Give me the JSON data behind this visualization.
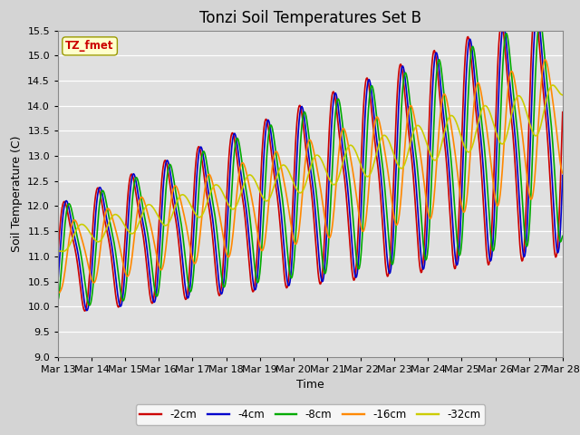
{
  "title": "Tonzi Soil Temperatures Set B",
  "xlabel": "Time",
  "ylabel": "Soil Temperature (C)",
  "ylim": [
    9.0,
    15.5
  ],
  "yticks": [
    9.0,
    9.5,
    10.0,
    10.5,
    11.0,
    11.5,
    12.0,
    12.5,
    13.0,
    13.5,
    14.0,
    14.5,
    15.0,
    15.5
  ],
  "xtick_labels": [
    "Mar 13",
    "Mar 14",
    "Mar 15",
    "Mar 16",
    "Mar 17",
    "Mar 18",
    "Mar 19",
    "Mar 20",
    "Mar 21",
    "Mar 22",
    "Mar 23",
    "Mar 24",
    "Mar 25",
    "Mar 26",
    "Mar 27",
    "Mar 28"
  ],
  "series_colors": [
    "#cc0000",
    "#0000cc",
    "#00aa00",
    "#ff8800",
    "#cccc00"
  ],
  "series_labels": [
    "-2cm",
    "-4cm",
    "-8cm",
    "-16cm",
    "-32cm"
  ],
  "annotation_text": "TZ_fmet",
  "annotation_color": "#cc0000",
  "annotation_bg": "#ffffcc",
  "annotation_edge": "#999900",
  "fig_facecolor": "#d4d4d4",
  "plot_facecolor": "#e0e0e0",
  "grid_color": "#ffffff",
  "title_fontsize": 12,
  "label_fontsize": 9,
  "tick_fontsize": 8,
  "line_width": 1.2,
  "n_points": 721
}
